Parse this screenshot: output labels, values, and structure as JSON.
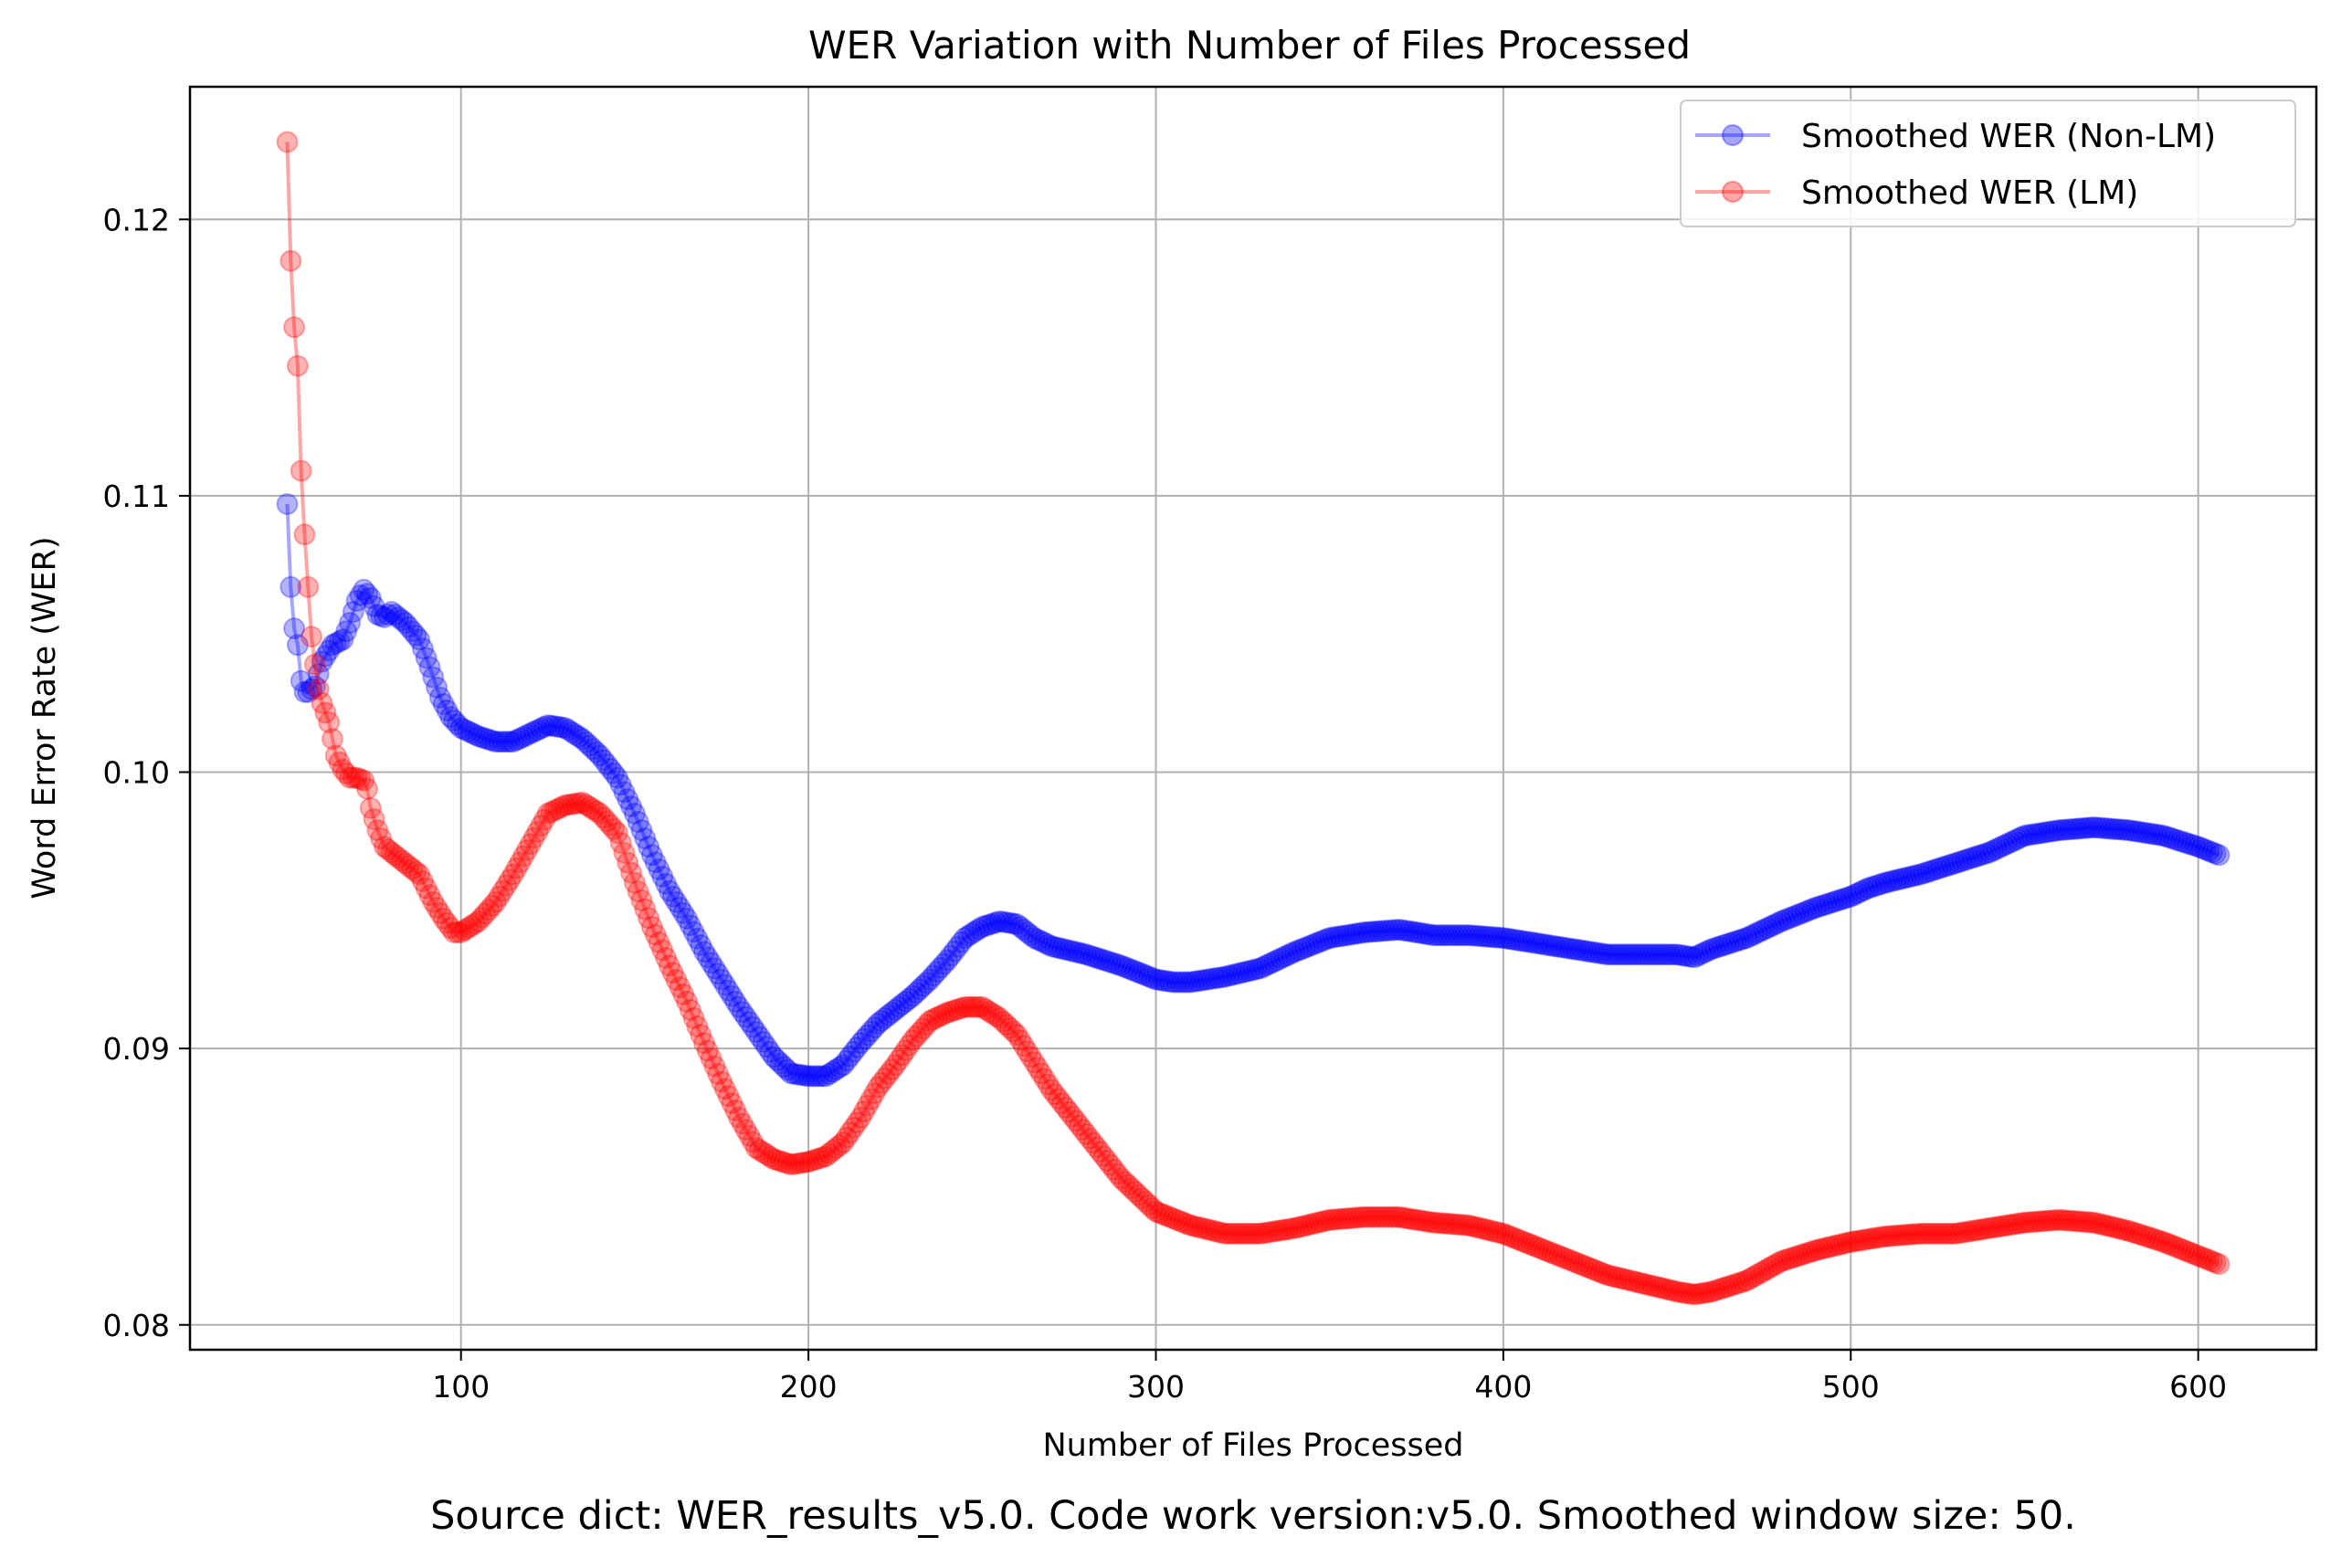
{
  "chart_data": {
    "type": "line",
    "title": "WER Variation with Number of Files Processed",
    "xlabel": "Number of Files Processed",
    "ylabel": "Word Error Rate (WER)",
    "caption": "Source dict: WER_results_v5.0. Code work version:v5.0. Smoothed window size: 50.",
    "xlim": [
      22,
      634
    ],
    "ylim": [
      0.0791,
      0.1248
    ],
    "xticks": [
      100,
      200,
      300,
      400,
      500,
      600
    ],
    "xtick_labels": [
      "100",
      "200",
      "300",
      "400",
      "500",
      "600"
    ],
    "yticks": [
      0.08,
      0.09,
      0.1,
      0.11,
      0.12
    ],
    "ytick_labels": [
      "0.08",
      "0.09",
      "0.10",
      "0.11",
      "0.12"
    ],
    "grid": true,
    "legend_position": "top-right",
    "marker": "circle",
    "series": [
      {
        "name": "Smoothed WER (Non-LM)",
        "color": "#0000ff",
        "points": [
          [
            50,
            0.1097
          ],
          [
            51,
            0.1067
          ],
          [
            52,
            0.1052
          ],
          [
            53,
            0.1046
          ],
          [
            54,
            0.1033
          ],
          [
            55,
            0.1029
          ],
          [
            56,
            0.1029
          ],
          [
            58,
            0.1031
          ],
          [
            60,
            0.104
          ],
          [
            63,
            0.1046
          ],
          [
            66,
            0.1048
          ],
          [
            68,
            0.1054
          ],
          [
            70,
            0.1062
          ],
          [
            72,
            0.1066
          ],
          [
            74,
            0.1063
          ],
          [
            76,
            0.1057
          ],
          [
            78,
            0.1056
          ],
          [
            80,
            0.1058
          ],
          [
            84,
            0.1054
          ],
          [
            88,
            0.1048
          ],
          [
            91,
            0.1038
          ],
          [
            94,
            0.1027
          ],
          [
            97,
            0.102
          ],
          [
            100,
            0.1016
          ],
          [
            105,
            0.1013
          ],
          [
            110,
            0.1011
          ],
          [
            115,
            0.1011
          ],
          [
            120,
            0.1014
          ],
          [
            125,
            0.1017
          ],
          [
            130,
            0.1016
          ],
          [
            135,
            0.1012
          ],
          [
            140,
            0.1006
          ],
          [
            145,
            0.0998
          ],
          [
            150,
            0.0985
          ],
          [
            155,
            0.097
          ],
          [
            160,
            0.0957
          ],
          [
            165,
            0.0947
          ],
          [
            170,
            0.0935
          ],
          [
            175,
            0.0925
          ],
          [
            180,
            0.0915
          ],
          [
            185,
            0.0906
          ],
          [
            190,
            0.0897
          ],
          [
            195,
            0.0891
          ],
          [
            200,
            0.089
          ],
          [
            205,
            0.089
          ],
          [
            210,
            0.0894
          ],
          [
            215,
            0.0902
          ],
          [
            220,
            0.0909
          ],
          [
            225,
            0.0914
          ],
          [
            230,
            0.0919
          ],
          [
            235,
            0.0925
          ],
          [
            240,
            0.0932
          ],
          [
            245,
            0.094
          ],
          [
            250,
            0.0944
          ],
          [
            255,
            0.0946
          ],
          [
            260,
            0.0945
          ],
          [
            265,
            0.094
          ],
          [
            270,
            0.0937
          ],
          [
            280,
            0.0934
          ],
          [
            290,
            0.093
          ],
          [
            300,
            0.0925
          ],
          [
            305,
            0.0924
          ],
          [
            310,
            0.0924
          ],
          [
            320,
            0.0926
          ],
          [
            330,
            0.0929
          ],
          [
            340,
            0.0935
          ],
          [
            350,
            0.094
          ],
          [
            360,
            0.0942
          ],
          [
            370,
            0.0943
          ],
          [
            380,
            0.0941
          ],
          [
            390,
            0.0941
          ],
          [
            400,
            0.094
          ],
          [
            410,
            0.0938
          ],
          [
            420,
            0.0936
          ],
          [
            430,
            0.0934
          ],
          [
            440,
            0.0934
          ],
          [
            450,
            0.0934
          ],
          [
            455,
            0.0933
          ],
          [
            460,
            0.0936
          ],
          [
            470,
            0.094
          ],
          [
            480,
            0.0946
          ],
          [
            490,
            0.0951
          ],
          [
            500,
            0.0955
          ],
          [
            505,
            0.0958
          ],
          [
            510,
            0.096
          ],
          [
            520,
            0.0963
          ],
          [
            530,
            0.0967
          ],
          [
            540,
            0.0971
          ],
          [
            550,
            0.0977
          ],
          [
            560,
            0.0979
          ],
          [
            570,
            0.098
          ],
          [
            580,
            0.0979
          ],
          [
            590,
            0.0977
          ],
          [
            600,
            0.0973
          ],
          [
            606,
            0.097
          ]
        ]
      },
      {
        "name": "Smoothed WER (LM)",
        "color": "#ff0000",
        "points": [
          [
            50,
            0.1228
          ],
          [
            51,
            0.1185
          ],
          [
            52,
            0.1161
          ],
          [
            53,
            0.1147
          ],
          [
            54,
            0.1109
          ],
          [
            55,
            0.1086
          ],
          [
            56,
            0.1067
          ],
          [
            57,
            0.1049
          ],
          [
            58,
            0.1039
          ],
          [
            59,
            0.103
          ],
          [
            60,
            0.1025
          ],
          [
            62,
            0.1018
          ],
          [
            63,
            0.1012
          ],
          [
            64,
            0.1006
          ],
          [
            66,
            0.1001
          ],
          [
            68,
            0.0998
          ],
          [
            70,
            0.0998
          ],
          [
            72,
            0.0997
          ],
          [
            73,
            0.0994
          ],
          [
            74,
            0.0987
          ],
          [
            75,
            0.0983
          ],
          [
            76,
            0.0979
          ],
          [
            78,
            0.0973
          ],
          [
            80,
            0.0971
          ],
          [
            84,
            0.0967
          ],
          [
            88,
            0.0963
          ],
          [
            90,
            0.0958
          ],
          [
            92,
            0.0953
          ],
          [
            95,
            0.0947
          ],
          [
            98,
            0.0942
          ],
          [
            100,
            0.0942
          ],
          [
            105,
            0.0946
          ],
          [
            110,
            0.0953
          ],
          [
            115,
            0.0963
          ],
          [
            120,
            0.0974
          ],
          [
            125,
            0.0985
          ],
          [
            130,
            0.0988
          ],
          [
            135,
            0.0989
          ],
          [
            140,
            0.0985
          ],
          [
            145,
            0.0978
          ],
          [
            150,
            0.096
          ],
          [
            155,
            0.0944
          ],
          [
            160,
            0.093
          ],
          [
            165,
            0.0917
          ],
          [
            170,
            0.0902
          ],
          [
            175,
            0.0888
          ],
          [
            180,
            0.0875
          ],
          [
            185,
            0.0864
          ],
          [
            190,
            0.086
          ],
          [
            195,
            0.0858
          ],
          [
            200,
            0.0859
          ],
          [
            205,
            0.0861
          ],
          [
            210,
            0.0866
          ],
          [
            215,
            0.0875
          ],
          [
            220,
            0.0886
          ],
          [
            225,
            0.0894
          ],
          [
            230,
            0.0903
          ],
          [
            235,
            0.091
          ],
          [
            240,
            0.0913
          ],
          [
            245,
            0.0915
          ],
          [
            250,
            0.0915
          ],
          [
            255,
            0.0911
          ],
          [
            260,
            0.0905
          ],
          [
            265,
            0.0895
          ],
          [
            270,
            0.0885
          ],
          [
            280,
            0.0869
          ],
          [
            290,
            0.0853
          ],
          [
            300,
            0.0841
          ],
          [
            310,
            0.0836
          ],
          [
            320,
            0.0833
          ],
          [
            330,
            0.0833
          ],
          [
            340,
            0.0835
          ],
          [
            350,
            0.0838
          ],
          [
            360,
            0.0839
          ],
          [
            370,
            0.0839
          ],
          [
            380,
            0.0837
          ],
          [
            390,
            0.0836
          ],
          [
            400,
            0.0833
          ],
          [
            410,
            0.0828
          ],
          [
            420,
            0.0823
          ],
          [
            430,
            0.0818
          ],
          [
            440,
            0.0815
          ],
          [
            450,
            0.0812
          ],
          [
            455,
            0.0811
          ],
          [
            460,
            0.0812
          ],
          [
            470,
            0.0816
          ],
          [
            480,
            0.0823
          ],
          [
            490,
            0.0827
          ],
          [
            500,
            0.083
          ],
          [
            510,
            0.0832
          ],
          [
            520,
            0.0833
          ],
          [
            530,
            0.0833
          ],
          [
            540,
            0.0835
          ],
          [
            550,
            0.0837
          ],
          [
            560,
            0.0838
          ],
          [
            570,
            0.0837
          ],
          [
            580,
            0.0834
          ],
          [
            590,
            0.083
          ],
          [
            600,
            0.0825
          ],
          [
            606,
            0.0822
          ]
        ]
      }
    ]
  }
}
